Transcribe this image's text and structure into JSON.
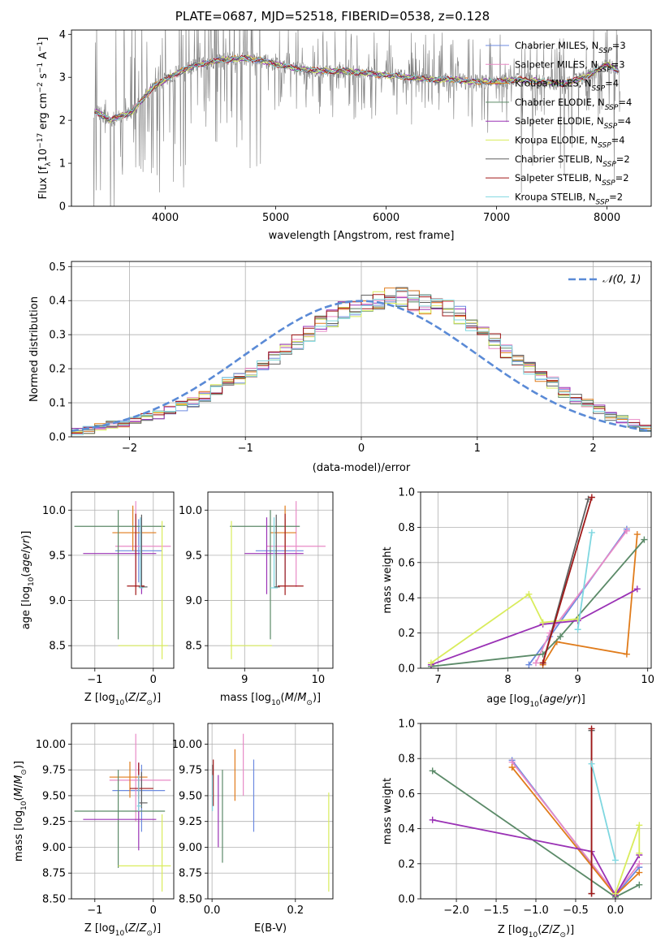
{
  "title": "PLATE=0687, MJD=52518, FIBERID=0538, z=0.128",
  "colors": {
    "Chabrier MILES": "#6c8ae0",
    "Salpeter MILES": "#e88ac6",
    "Kroupa MILES": "#e07b1a",
    "Chabrier ELODIE": "#5b8a68",
    "Salpeter ELODIE": "#9a32b5",
    "Kroupa ELODIE": "#d9ec5c",
    "Chabrier STELIB": "#606060",
    "Salpeter STELIB": "#a01818",
    "Kroupa STELIB": "#7fd7e0",
    "data": "#808080",
    "normal": "#5a8ad6"
  },
  "chart_data": [
    {
      "id": "spectrum",
      "type": "line",
      "title": "PLATE=0687, MJD=52518, FIBERID=0538, z=0.128",
      "xlabel": "wavelength [Angstrom, rest frame]",
      "ylabel": "Flux [f_λ 10^-17 erg cm^-2 s^-1 A^-1]",
      "xlim": [
        3150,
        8400
      ],
      "ylim": [
        0,
        4.1
      ],
      "xticks": [
        "4000",
        "5000",
        "6000",
        "7000",
        "8000"
      ],
      "yticks": [
        "0",
        "1",
        "2",
        "3",
        "4"
      ],
      "legend_position": "upper right",
      "model_continuum": {
        "x": [
          3380,
          3500,
          3600,
          3700,
          3800,
          3900,
          4000,
          4100,
          4300,
          4500,
          4700,
          4860,
          5000,
          5200,
          5400,
          5600,
          5800,
          6000,
          6200,
          6400,
          6600,
          6800,
          7000,
          7200,
          7400,
          7600,
          7800,
          8000,
          8100
        ],
        "y": [
          2.2,
          2.0,
          2.1,
          2.2,
          2.5,
          2.8,
          2.95,
          3.1,
          3.3,
          3.4,
          3.45,
          3.4,
          3.3,
          3.2,
          3.15,
          3.15,
          3.1,
          3.05,
          3.0,
          2.95,
          2.95,
          2.9,
          2.9,
          2.95,
          2.9,
          2.85,
          3.0,
          3.3,
          3.15
        ]
      },
      "series": [
        {
          "name": "Chabrier MILES, N_SSP=3"
        },
        {
          "name": "Salpeter MILES, N_SSP=3"
        },
        {
          "name": "Kroupa MILES, N_SSP=4"
        },
        {
          "name": "Chabrier ELODIE, N_SSP=4"
        },
        {
          "name": "Salpeter ELODIE, N_SSP=4"
        },
        {
          "name": "Kroupa ELODIE, N_SSP=4"
        },
        {
          "name": "Chabrier STELIB, N_SSP=2"
        },
        {
          "name": "Salpeter STELIB, N_SSP=2"
        },
        {
          "name": "Kroupa STELIB, N_SSP=2"
        }
      ]
    },
    {
      "id": "residuals",
      "type": "histogram",
      "xlabel": "(data-model)/error",
      "ylabel": "Normed distribution",
      "xlim": [
        -2.5,
        2.5
      ],
      "ylim": [
        0,
        0.515
      ],
      "xticks": [
        "−2",
        "−1",
        "0",
        "1",
        "2"
      ],
      "yticks": [
        "0.0",
        "0.1",
        "0.2",
        "0.3",
        "0.4",
        "0.5"
      ],
      "legend_label": "𝒩(0, 1)",
      "bin_width": 0.1,
      "bin_start": -2.5,
      "typical_heights": [
        0.015,
        0.02,
        0.03,
        0.035,
        0.04,
        0.05,
        0.06,
        0.065,
        0.08,
        0.09,
        0.1,
        0.12,
        0.14,
        0.16,
        0.17,
        0.19,
        0.21,
        0.235,
        0.26,
        0.28,
        0.3,
        0.33,
        0.35,
        0.37,
        0.38,
        0.39,
        0.4,
        0.41,
        0.41,
        0.4,
        0.39,
        0.385,
        0.38,
        0.36,
        0.33,
        0.3,
        0.28,
        0.25,
        0.23,
        0.2,
        0.18,
        0.16,
        0.13,
        0.11,
        0.1,
        0.08,
        0.06,
        0.05,
        0.04,
        0.025,
        0.02
      ]
    },
    {
      "id": "age_vs_Z",
      "type": "errorbar",
      "xlabel": "Z [log10(Z/Z⊙)]",
      "ylabel": "age  [log10(age/yr)]",
      "xlim": [
        -1.4,
        0.35
      ],
      "ylim": [
        8.25,
        10.2
      ],
      "xticks": [
        "−1",
        "0"
      ],
      "yticks": [
        "8.5",
        "9.0",
        "9.5",
        "10.0"
      ],
      "points": [
        {
          "model": "Chabrier MILES",
          "x": -0.25,
          "y": 9.55,
          "xerr": [
            0.4,
            0.4
          ],
          "yerr": [
            0.35,
            0.35
          ]
        },
        {
          "model": "Salpeter MILES",
          "x": -0.3,
          "y": 9.6,
          "xerr": [
            0.35,
            0.6
          ],
          "yerr": [
            0.45,
            0.5
          ]
        },
        {
          "model": "Kroupa MILES",
          "x": -0.35,
          "y": 9.75,
          "xerr": [
            0.35,
            0.4
          ],
          "yerr": [
            0.2,
            0.3
          ]
        },
        {
          "model": "Chabrier ELODIE",
          "x": -0.6,
          "y": 9.82,
          "xerr": [
            0.75,
            0.8
          ],
          "yerr": [
            1.25,
            0.18
          ]
        },
        {
          "model": "Salpeter ELODIE",
          "x": -0.2,
          "y": 9.52,
          "xerr": [
            1.0,
            0.25
          ],
          "yerr": [
            0.45,
            0.4
          ]
        },
        {
          "model": "Kroupa ELODIE",
          "x": 0.15,
          "y": 8.5,
          "xerr": [
            0.75,
            0.1
          ],
          "yerr": [
            0.15,
            1.38
          ]
        },
        {
          "model": "Chabrier STELIB",
          "x": -0.2,
          "y": 9.15,
          "xerr": [
            0.05,
            0.1
          ],
          "yerr": [
            0.0,
            0.8
          ]
        },
        {
          "model": "Salpeter STELIB",
          "x": -0.3,
          "y": 9.16,
          "xerr": [
            0.15,
            0.15
          ],
          "yerr": [
            0.1,
            0.8
          ]
        },
        {
          "model": "Kroupa STELIB",
          "x": -0.22,
          "y": 9.14,
          "xerr": [
            0.02,
            0.05
          ],
          "yerr": [
            0.0,
            0.78
          ]
        }
      ]
    },
    {
      "id": "age_vs_mass",
      "type": "errorbar",
      "xlabel": "mass [log10(M/M⊙)]",
      "ylim": [
        8.25,
        10.2
      ],
      "xlim": [
        8.5,
        10.2
      ],
      "xticks": [
        "9",
        "10"
      ],
      "yticks": [
        "8.5",
        "9.0",
        "9.5",
        "10.0"
      ],
      "points": [
        {
          "model": "Chabrier MILES",
          "x": 9.55,
          "y": 9.55,
          "xerr": [
            0.4,
            0.25
          ],
          "yerr": [
            0.35,
            0.35
          ]
        },
        {
          "model": "Salpeter MILES",
          "x": 9.7,
          "y": 9.6,
          "xerr": [
            0.4,
            0.4
          ],
          "yerr": [
            0.45,
            0.5
          ]
        },
        {
          "model": "Kroupa MILES",
          "x": 9.55,
          "y": 9.75,
          "xerr": [
            0.2,
            0.15
          ],
          "yerr": [
            0.2,
            0.3
          ]
        },
        {
          "model": "Chabrier ELODIE",
          "x": 9.35,
          "y": 9.82,
          "xerr": [
            0.55,
            0.4
          ],
          "yerr": [
            1.25,
            0.18
          ]
        },
        {
          "model": "Salpeter ELODIE",
          "x": 9.3,
          "y": 9.52,
          "xerr": [
            0.3,
            0.5
          ],
          "yerr": [
            0.45,
            0.4
          ]
        },
        {
          "model": "Kroupa ELODIE",
          "x": 8.82,
          "y": 8.5,
          "xerr": [
            0.02,
            0.55
          ],
          "yerr": [
            0.15,
            1.38
          ]
        },
        {
          "model": "Chabrier STELIB",
          "x": 9.43,
          "y": 9.15,
          "xerr": [
            0.03,
            0.05
          ],
          "yerr": [
            0.0,
            0.8
          ]
        },
        {
          "model": "Salpeter STELIB",
          "x": 9.55,
          "y": 9.16,
          "xerr": [
            0.1,
            0.25
          ],
          "yerr": [
            0.1,
            0.8
          ]
        },
        {
          "model": "Kroupa STELIB",
          "x": 9.4,
          "y": 9.14,
          "xerr": [
            0.05,
            0.05
          ],
          "yerr": [
            0.0,
            0.78
          ]
        }
      ]
    },
    {
      "id": "massweight_vs_age",
      "type": "line",
      "xlabel": "age  [log10(age/yr)]",
      "ylabel": "mass weight",
      "xlim": [
        6.75,
        10.05
      ],
      "ylim": [
        0,
        1.0
      ],
      "xticks": [
        "7",
        "8",
        "9",
        "10"
      ],
      "yticks": [
        "0.0",
        "0.2",
        "0.4",
        "0.6",
        "0.8",
        "1.0"
      ],
      "series": [
        {
          "model": "Chabrier MILES",
          "x": [
            8.3,
            8.6,
            9.7
          ],
          "y": [
            0.02,
            0.18,
            0.79
          ]
        },
        {
          "model": "Salpeter MILES",
          "x": [
            8.4,
            8.6,
            9.7
          ],
          "y": [
            0.03,
            0.2,
            0.78
          ]
        },
        {
          "model": "Kroupa MILES",
          "x": [
            8.5,
            8.7,
            9.7,
            9.85
          ],
          "y": [
            0.02,
            0.15,
            0.08,
            0.76
          ]
        },
        {
          "model": "Chabrier ELODIE",
          "x": [
            6.9,
            8.5,
            8.75,
            9.95
          ],
          "y": [
            0.01,
            0.08,
            0.18,
            0.73
          ]
        },
        {
          "model": "Salpeter ELODIE",
          "x": [
            6.9,
            8.5,
            9.0,
            9.85
          ],
          "y": [
            0.02,
            0.25,
            0.27,
            0.45
          ]
        },
        {
          "model": "Kroupa ELODIE",
          "x": [
            6.9,
            8.3,
            8.5,
            9.0
          ],
          "y": [
            0.03,
            0.42,
            0.26,
            0.28
          ]
        },
        {
          "model": "Chabrier STELIB",
          "x": [
            8.5,
            9.15
          ],
          "y": [
            0.03,
            0.96
          ]
        },
        {
          "model": "Salpeter STELIB",
          "x": [
            8.5,
            9.2
          ],
          "y": [
            0.03,
            0.97
          ]
        },
        {
          "model": "Kroupa STELIB",
          "x": [
            9.0,
            9.2
          ],
          "y": [
            0.22,
            0.77
          ]
        }
      ]
    },
    {
      "id": "mass_vs_Z",
      "type": "errorbar",
      "xlabel": "Z [log10(Z/Z⊙)]",
      "ylabel": "mass [log10(M/M⊙)]",
      "xlim": [
        -1.4,
        0.35
      ],
      "ylim": [
        8.5,
        10.2
      ],
      "xticks": [
        "−1",
        "0"
      ],
      "yticks": [
        "8.50",
        "8.75",
        "9.00",
        "9.25",
        "9.50",
        "9.75",
        "10.00"
      ],
      "points": [
        {
          "model": "Chabrier MILES",
          "x": -0.2,
          "y": 9.55,
          "xerr": [
            0.5,
            0.4
          ],
          "yerr": [
            0.4,
            0.25
          ]
        },
        {
          "model": "Salpeter MILES",
          "x": -0.3,
          "y": 9.65,
          "xerr": [
            0.45,
            0.6
          ],
          "yerr": [
            0.4,
            0.45
          ]
        },
        {
          "model": "Kroupa MILES",
          "x": -0.4,
          "y": 9.68,
          "xerr": [
            0.35,
            0.3
          ],
          "yerr": [
            0.2,
            0.15
          ]
        },
        {
          "model": "Chabrier ELODIE",
          "x": -0.6,
          "y": 9.35,
          "xerr": [
            0.75,
            0.8
          ],
          "yerr": [
            0.55,
            0.4
          ]
        },
        {
          "model": "Salpeter ELODIE",
          "x": -0.25,
          "y": 9.27,
          "xerr": [
            0.95,
            0.3
          ],
          "yerr": [
            0.3,
            0.55
          ]
        },
        {
          "model": "Kroupa ELODIE",
          "x": 0.15,
          "y": 8.82,
          "xerr": [
            0.75,
            0.15
          ],
          "yerr": [
            0.25,
            0.5
          ]
        },
        {
          "model": "Chabrier STELIB",
          "x": -0.2,
          "y": 9.43,
          "xerr": [
            0.05,
            0.1
          ],
          "yerr": [
            0.05,
            0.3
          ]
        },
        {
          "model": "Salpeter STELIB",
          "x": -0.25,
          "y": 9.57,
          "xerr": [
            0.15,
            0.25
          ],
          "yerr": [
            0.1,
            0.25
          ]
        },
        {
          "model": "Kroupa STELIB",
          "x": -0.25,
          "y": 9.4,
          "xerr": [
            0.03,
            0.05
          ],
          "yerr": [
            0.05,
            0.3
          ]
        }
      ]
    },
    {
      "id": "mass_vs_ebv",
      "type": "errorbar",
      "xlabel": "E(B-V)",
      "xlim": [
        -0.01,
        0.29
      ],
      "ylim": [
        8.5,
        10.2
      ],
      "xticks": [
        "0.0",
        "0.2"
      ],
      "yticks": [
        "8.50",
        "8.75",
        "9.00",
        "9.25",
        "9.50",
        "9.75",
        "10.00"
      ],
      "points": [
        {
          "model": "Chabrier MILES",
          "x": 0.1,
          "y": 9.5,
          "yerr": [
            0.35,
            0.35
          ]
        },
        {
          "model": "Salpeter MILES",
          "x": 0.075,
          "y": 9.8,
          "yerr": [
            0.3,
            0.3
          ]
        },
        {
          "model": "Kroupa MILES",
          "x": 0.055,
          "y": 9.7,
          "yerr": [
            0.25,
            0.25
          ]
        },
        {
          "model": "Chabrier ELODIE",
          "x": 0.025,
          "y": 9.3,
          "yerr": [
            0.45,
            0.45
          ]
        },
        {
          "model": "Salpeter ELODIE",
          "x": 0.015,
          "y": 9.35,
          "yerr": [
            0.35,
            0.35
          ]
        },
        {
          "model": "Kroupa ELODIE",
          "x": 0.28,
          "y": 9.05,
          "yerr": [
            0.48,
            0.48
          ]
        },
        {
          "model": "Chabrier STELIB",
          "x": 0.002,
          "y": 9.5,
          "yerr": [
            0.1,
            0.3
          ]
        },
        {
          "model": "Salpeter STELIB",
          "x": 0.003,
          "y": 9.6,
          "yerr": [
            0.2,
            0.25
          ]
        },
        {
          "model": "Kroupa STELIB",
          "x": 0.001,
          "y": 9.45,
          "yerr": [
            0.1,
            0.25
          ]
        }
      ]
    },
    {
      "id": "massweight_vs_Z",
      "type": "line",
      "xlabel": "Z [log10(Z/Z⊙)]",
      "ylabel": "mass weight",
      "xlim": [
        -2.45,
        0.45
      ],
      "ylim": [
        0,
        1.0
      ],
      "xticks": [
        "−2.0",
        "−1.5",
        "−1.0",
        "−0.5",
        "0.0"
      ],
      "yticks": [
        "0.0",
        "0.2",
        "0.4",
        "0.6",
        "0.8",
        "1.0"
      ],
      "series": [
        {
          "model": "Chabrier MILES",
          "x": [
            -1.3,
            0.0,
            0.3
          ],
          "y": [
            0.79,
            0.02,
            0.18
          ]
        },
        {
          "model": "Salpeter MILES",
          "x": [
            -1.3,
            0.0,
            0.3
          ],
          "y": [
            0.78,
            0.03,
            0.2
          ]
        },
        {
          "model": "Kroupa MILES",
          "x": [
            -1.3,
            0.0,
            0.3
          ],
          "y": [
            0.75,
            0.02,
            0.15
          ]
        },
        {
          "model": "Chabrier ELODIE",
          "x": [
            -2.3,
            0.0,
            0.3
          ],
          "y": [
            0.73,
            0.01,
            0.08
          ]
        },
        {
          "model": "Salpeter ELODIE",
          "x": [
            -2.3,
            -0.3,
            0.0,
            0.3
          ],
          "y": [
            0.45,
            0.27,
            0.02,
            0.25
          ]
        },
        {
          "model": "Kroupa ELODIE",
          "x": [
            0.0,
            0.3,
            0.3
          ],
          "y": [
            0.03,
            0.42,
            0.26
          ]
        },
        {
          "model": "Chabrier STELIB",
          "x": [
            -0.3,
            -0.3
          ],
          "y": [
            0.03,
            0.96
          ]
        },
        {
          "model": "Salpeter STELIB",
          "x": [
            -0.3,
            -0.3
          ],
          "y": [
            0.03,
            0.97
          ]
        },
        {
          "model": "Kroupa STELIB",
          "x": [
            -0.3,
            0.0
          ],
          "y": [
            0.77,
            0.22
          ]
        }
      ]
    }
  ]
}
